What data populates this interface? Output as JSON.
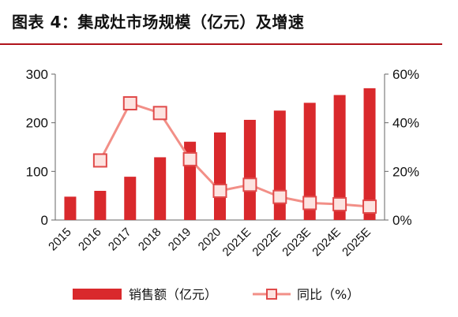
{
  "title": "图表 4：集成灶市场规模（亿元）及增速",
  "chart_data": {
    "type": "bar",
    "categories": [
      "2015",
      "2016",
      "2017",
      "2018",
      "2019",
      "2020",
      "2021E",
      "2022E",
      "2023E",
      "2024E",
      "2025E"
    ],
    "series": [
      {
        "name": "销售额（亿元）",
        "type": "bar",
        "axis": "left",
        "values": [
          48,
          60,
          89,
          129,
          161,
          180,
          206,
          225,
          241,
          257,
          271
        ]
      },
      {
        "name": "同比（%）",
        "type": "line",
        "axis": "right",
        "values": [
          null,
          24.5,
          48.0,
          44.0,
          25.0,
          12.0,
          14.5,
          9.5,
          7.0,
          6.5,
          5.5
        ]
      }
    ],
    "y_left": {
      "ylim": [
        0,
        300
      ],
      "ticks": [
        "0",
        "100",
        "200",
        "300"
      ]
    },
    "y_right": {
      "ylim": [
        0,
        60
      ],
      "ticks": [
        "0%",
        "20%",
        "40%",
        "60%"
      ]
    },
    "legend_placement": "bottom",
    "grid": false,
    "colors": {
      "bar": "#d9292c",
      "line": "#f28f87",
      "marker_fill": "#fde3e0"
    }
  }
}
